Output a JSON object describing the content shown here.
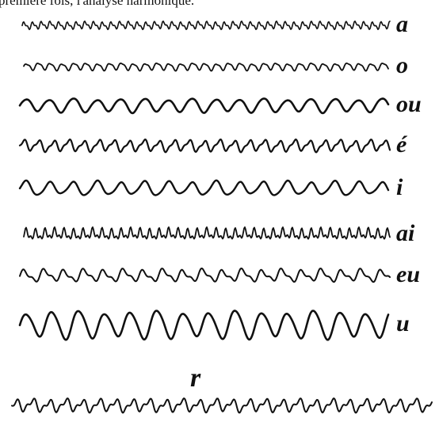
{
  "caption": "première fois, l'analyse harmonique.",
  "labels": [
    "a",
    "o",
    "ou",
    "é",
    "i",
    "ai",
    "eu",
    "u"
  ],
  "bottom_label": "r"
}
